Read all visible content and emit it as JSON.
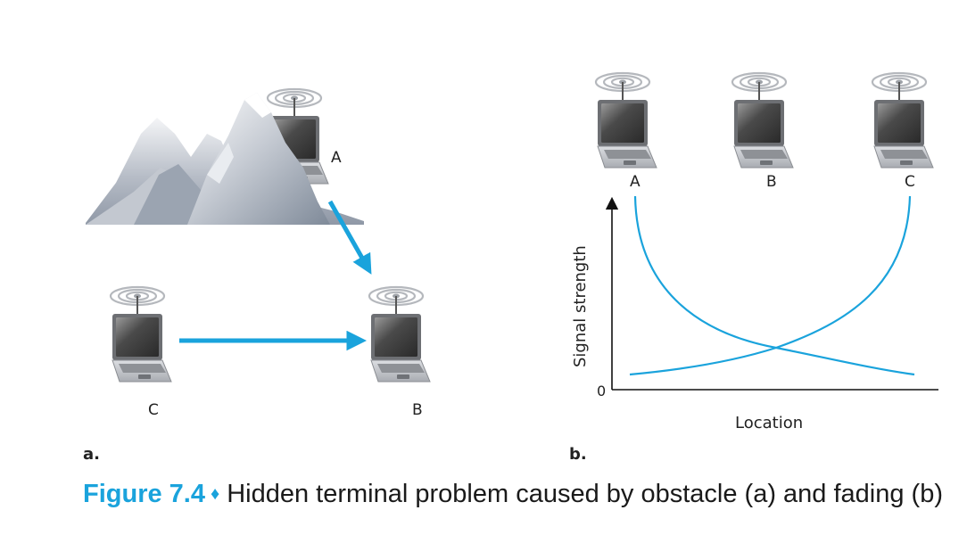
{
  "panel_a": {
    "panel_label": "a.",
    "node_a_label": "A",
    "node_b_label": "B",
    "node_c_label": "C"
  },
  "panel_b": {
    "panel_label": "b.",
    "node_a_label": "A",
    "node_b_label": "B",
    "node_c_label": "C",
    "y_axis_label": "Signal strength",
    "x_axis_label": "Location",
    "y_origin_label": "0"
  },
  "caption": {
    "figure_number": "Figure 7.4",
    "separator": "♦",
    "text": "Hidden terminal problem caused by obstacle (a) and fading (b)"
  },
  "colors": {
    "accent": "#1aa3dc",
    "mountain_light": "#e8eaee",
    "mountain_dark": "#8f98a6",
    "laptop_screen": "#5a5a5a",
    "laptop_body": "#c9cbcf"
  }
}
